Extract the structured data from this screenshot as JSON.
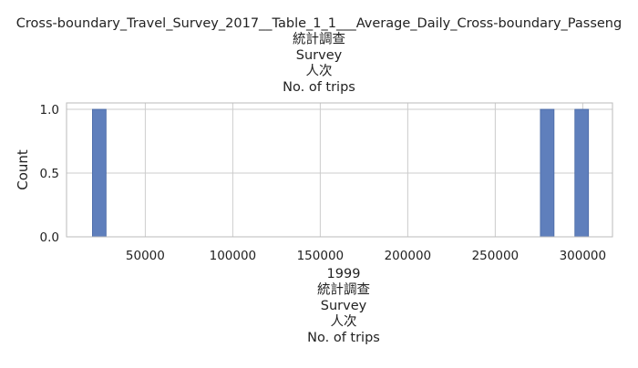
{
  "chart_data": {
    "type": "bar",
    "title_lines": [
      "Cross-boundary_Travel_Survey_2017__Table_1_1___Average_Daily_Cross-boundary_Passeng",
      "統計調查",
      "Survey",
      "人次",
      "No. of trips"
    ],
    "xlabel_lines": [
      "1999",
      "統計調查",
      "Survey",
      "人次",
      "No. of trips"
    ],
    "ylabel": "Count",
    "xlim": [
      5000,
      317000
    ],
    "ylim": [
      0,
      1.05
    ],
    "x_ticks": [
      50000,
      100000,
      150000,
      200000,
      250000,
      300000
    ],
    "x_tick_labels": [
      "50000",
      "100000",
      "150000",
      "200000",
      "250000",
      "300000"
    ],
    "y_ticks": [
      0,
      0.5,
      1
    ],
    "y_tick_labels": [
      "0.0",
      "0.5",
      "1.0"
    ],
    "grid": true,
    "bins": [
      {
        "start": 19800,
        "end": 27600,
        "count": 1
      },
      {
        "start": 275800,
        "end": 283600,
        "count": 1
      },
      {
        "start": 295500,
        "end": 303300,
        "count": 1
      }
    ],
    "colors": {
      "bar": "#5f7fbc",
      "bar_edge": "#4a6aa6",
      "grid": "#cccccc",
      "axis": "#bbbbbb"
    }
  }
}
